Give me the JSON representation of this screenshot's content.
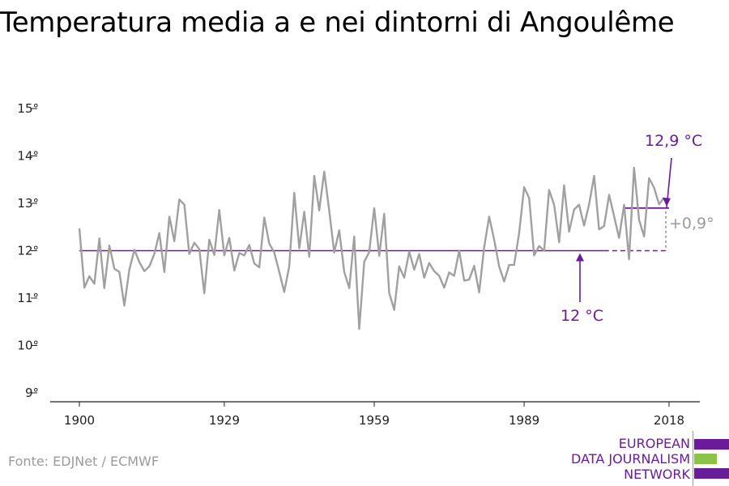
{
  "title": "Temperatura media a e nei dintorni di Angoulême",
  "source": "Fonte: EDJNet / ECMWF",
  "logo": {
    "lines": [
      "EUROPEAN",
      "DATA JOURNALISM",
      "NETWORK"
    ],
    "colors": {
      "purple": "#6a1b9a",
      "green": "#8bc34a"
    }
  },
  "colors": {
    "series": "#a0a0a0",
    "accent": "#6a1b9a",
    "delta": "#9a9a9a",
    "axis": "#222222",
    "grid": "#cccccc"
  },
  "chart_data": {
    "type": "line",
    "x_ticks": [
      1900,
      1929,
      1959,
      1989,
      2018
    ],
    "x_tick_labels": [
      "1900",
      "1929",
      "1959",
      "1989",
      "2018"
    ],
    "y_ticks": [
      9,
      10,
      11,
      12,
      13,
      14,
      15
    ],
    "y_tick_labels": [
      "9°",
      "10°",
      "11°",
      "12°",
      "13°",
      "14°",
      "15°"
    ],
    "ylim": [
      9,
      15
    ],
    "xlim": [
      1900,
      2018
    ],
    "grid": false,
    "series": [
      {
        "x_start": 1900,
        "values": [
          12.47,
          11.22,
          11.46,
          11.3,
          12.26,
          11.21,
          12.11,
          11.62,
          11.55,
          10.84,
          11.6,
          12.02,
          11.76,
          11.57,
          11.67,
          11.93,
          12.37,
          11.55,
          12.72,
          12.2,
          13.08,
          12.97,
          11.93,
          12.17,
          12.03,
          11.1,
          12.23,
          11.91,
          12.86,
          11.9,
          12.27,
          11.58,
          11.95,
          11.9,
          12.12,
          11.73,
          11.65,
          12.7,
          12.15,
          11.96,
          11.55,
          11.13,
          11.67,
          13.22,
          12.05,
          12.82,
          11.87,
          13.58,
          12.85,
          13.67,
          12.84,
          11.96,
          12.43,
          11.55,
          11.21,
          12.3,
          10.35,
          11.77,
          11.97,
          12.9,
          11.89,
          12.78,
          11.11,
          10.75,
          11.67,
          11.43,
          11.98,
          11.6,
          11.93,
          11.43,
          11.74,
          11.57,
          11.47,
          11.22,
          11.54,
          11.47,
          12.0,
          11.37,
          11.39,
          11.68,
          11.12,
          12.07,
          12.72,
          12.23,
          11.67,
          11.35,
          11.7,
          11.7,
          12.37,
          13.34,
          13.11,
          11.9,
          12.1,
          12.0,
          13.28,
          12.97,
          12.18,
          13.38,
          12.4,
          12.87,
          12.97,
          12.53,
          12.98,
          13.58,
          12.45,
          12.52,
          13.18,
          12.73,
          12.27,
          12.97,
          11.82,
          13.75,
          12.65,
          12.3,
          13.53,
          13.33,
          12.98,
          13.12
        ]
      }
    ],
    "reference_lines": [
      {
        "label": "12 °C",
        "value": 12.0,
        "from": 1900,
        "solid_to": 2005,
        "dashed_to": 2018
      },
      {
        "label": "12,9 °C",
        "value": 12.9,
        "from": 2009,
        "to": 2018
      }
    ],
    "delta_label": "+0,9°"
  }
}
